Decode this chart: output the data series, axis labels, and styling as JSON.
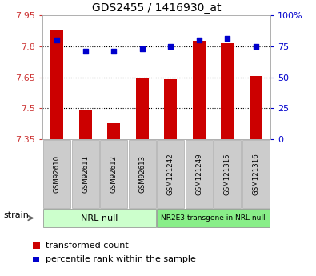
{
  "title": "GDS2455 / 1416930_at",
  "samples": [
    "GSM92610",
    "GSM92611",
    "GSM92612",
    "GSM92613",
    "GSM121242",
    "GSM121249",
    "GSM121315",
    "GSM121316"
  ],
  "bar_values": [
    7.88,
    7.49,
    7.43,
    7.645,
    7.642,
    7.825,
    7.815,
    7.655
  ],
  "percentile_values": [
    80,
    71,
    71,
    73,
    75,
    80,
    81,
    75
  ],
  "ylim_left": [
    7.35,
    7.95
  ],
  "ylim_right": [
    0,
    100
  ],
  "yticks_left": [
    7.35,
    7.5,
    7.65,
    7.8,
    7.95
  ],
  "yticks_right": [
    0,
    25,
    50,
    75,
    100
  ],
  "ytick_labels_right": [
    "0",
    "25",
    "50",
    "75",
    "100%"
  ],
  "bar_color": "#cc0000",
  "scatter_color": "#0000cc",
  "dotted_line_y": [
    7.5,
    7.65,
    7.8
  ],
  "group1_label": "NRL null",
  "group1_color": "#ccffcc",
  "group2_label": "NR2E3 transgene in NRL null",
  "group2_color": "#88ee88",
  "strain_label": "strain",
  "legend_bar_label": "transformed count",
  "legend_scatter_label": "percentile rank within the sample",
  "tick_color_left": "#cc3333",
  "tick_color_right": "#0000cc",
  "bar_width": 0.45,
  "title_fontsize": 10,
  "tick_fontsize": 8,
  "legend_fontsize": 8,
  "sample_box_color": "#cccccc",
  "sample_box_edge": "#aaaaaa"
}
